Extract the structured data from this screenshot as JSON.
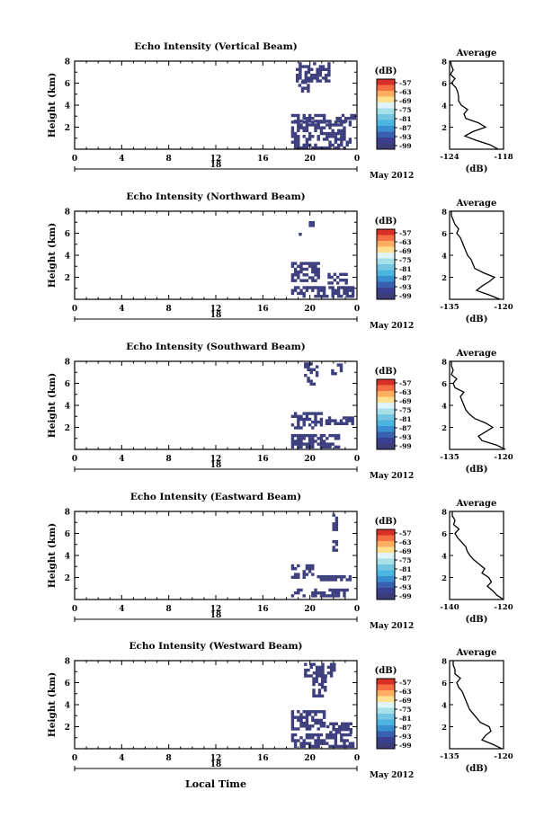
{
  "common": {
    "xlabel": "Local Time",
    "date_label": "May 2012",
    "day_label": "18",
    "ylabel": "Height (km)",
    "colorbar_unit": "(dB)",
    "avg_title": "Average",
    "avg_xlabel": "(dB)",
    "colorbar_ticks": [
      "-57",
      "-63",
      "-69",
      "-75",
      "-81",
      "-87",
      "-93",
      "-99"
    ],
    "colorbar_colors": [
      "#d73027",
      "#f46d43",
      "#fdae61",
      "#fee090",
      "#e0f3f8",
      "#a6e0e9",
      "#74c6e0",
      "#4db6e0",
      "#3a8fd0",
      "#3a60b0",
      "#3b3f90",
      "#3c3c78"
    ]
  },
  "chart_data": [
    {
      "type": "heatmap",
      "title": "Echo Intensity (Vertical Beam)",
      "xlim": [
        0,
        24
      ],
      "xticks": [
        "0",
        "4",
        "8",
        "12",
        "16",
        "20",
        "0"
      ],
      "ylim": [
        0,
        8
      ],
      "yticks": [
        "2",
        "4",
        "6",
        "8"
      ],
      "echo_cells": [
        {
          "t": [
            18.8,
            21.5
          ],
          "h": [
            6.2,
            7.9
          ]
        },
        {
          "t": [
            19.0,
            20.2
          ],
          "h": [
            5.4,
            6.2
          ]
        },
        {
          "t": [
            18.4,
            21.8
          ],
          "h": [
            2.6,
            3.2
          ]
        },
        {
          "t": [
            22.2,
            23.8
          ],
          "h": [
            2.6,
            3.2
          ]
        },
        {
          "t": [
            18.4,
            23.5
          ],
          "h": [
            0.2,
            2.6
          ]
        }
      ],
      "average": {
        "xlim": [
          -124,
          -118
        ],
        "xticks": [
          "-124",
          "-118"
        ],
        "height": [
          0.0,
          0.4,
          0.8,
          1.2,
          1.6,
          2.0,
          2.4,
          2.8,
          3.2,
          3.6,
          4.0,
          4.4,
          4.8,
          5.2,
          5.6,
          6.0,
          6.4,
          6.8,
          7.2,
          7.6,
          8.0
        ],
        "value": [
          -118.6,
          -119.5,
          -121.0,
          -122.3,
          -121.4,
          -120.0,
          -120.8,
          -122.2,
          -122.4,
          -122.0,
          -122.7,
          -123.0,
          -123.0,
          -123.1,
          -123.3,
          -123.8,
          -123.4,
          -123.9,
          -123.6,
          -123.8,
          -123.9
        ]
      }
    },
    {
      "type": "heatmap",
      "title": "Echo Intensity (Northward Beam)",
      "xlim": [
        0,
        24
      ],
      "xticks": [
        "0",
        "4",
        "8",
        "12",
        "16",
        "20",
        "0"
      ],
      "ylim": [
        0,
        8
      ],
      "yticks": [
        "2",
        "4",
        "6",
        "8"
      ],
      "echo_cells": [
        {
          "t": [
            19.9,
            20.3
          ],
          "h": [
            6.6,
            7.1
          ]
        },
        {
          "t": [
            18.8,
            19.2
          ],
          "h": [
            5.9,
            6.3
          ]
        },
        {
          "t": [
            18.4,
            20.8
          ],
          "h": [
            1.6,
            3.4
          ]
        },
        {
          "t": [
            21.5,
            23.2
          ],
          "h": [
            1.6,
            2.4
          ]
        },
        {
          "t": [
            18.4,
            23.6
          ],
          "h": [
            0.2,
            1.2
          ]
        }
      ],
      "average": {
        "xlim": [
          -135,
          -120
        ],
        "xticks": [
          "-135",
          "-120"
        ],
        "height": [
          0.0,
          0.4,
          0.8,
          1.2,
          1.6,
          2.0,
          2.4,
          2.8,
          3.2,
          3.6,
          4.0,
          4.4,
          4.8,
          5.2,
          5.6,
          6.0,
          6.4,
          6.8,
          7.2,
          7.6,
          8.0
        ],
        "value": [
          -121.0,
          -124.0,
          -127.5,
          -126.0,
          -124.0,
          -122.5,
          -125.5,
          -128.0,
          -128.5,
          -129.0,
          -130.0,
          -130.5,
          -131.0,
          -131.5,
          -132.0,
          -133.0,
          -132.5,
          -133.5,
          -134.0,
          -134.5,
          -134.5
        ]
      }
    },
    {
      "type": "heatmap",
      "title": "Echo Intensity (Southward Beam)",
      "xlim": [
        0,
        24
      ],
      "xticks": [
        "0",
        "4",
        "8",
        "12",
        "16",
        "20",
        "0"
      ],
      "ylim": [
        0,
        8
      ],
      "yticks": [
        "2",
        "4",
        "6",
        "8"
      ],
      "echo_cells": [
        {
          "t": [
            19.5,
            20.7
          ],
          "h": [
            6.0,
            7.9
          ]
        },
        {
          "t": [
            21.8,
            22.6
          ],
          "h": [
            7.0,
            7.8
          ]
        },
        {
          "t": [
            18.4,
            21.0
          ],
          "h": [
            2.0,
            3.4
          ]
        },
        {
          "t": [
            21.3,
            23.6
          ],
          "h": [
            2.4,
            3.0
          ]
        },
        {
          "t": [
            18.4,
            22.5
          ],
          "h": [
            0.2,
            1.4
          ]
        }
      ],
      "average": {
        "xlim": [
          -135,
          -120
        ],
        "xticks": [
          "-135",
          "-120"
        ],
        "height": [
          0.0,
          0.4,
          0.8,
          1.2,
          1.6,
          2.0,
          2.4,
          2.8,
          3.2,
          3.6,
          4.0,
          4.4,
          4.8,
          5.2,
          5.6,
          6.0,
          6.4,
          6.8,
          7.2,
          7.6,
          8.0
        ],
        "value": [
          -119.5,
          -122.0,
          -126.0,
          -127.0,
          -125.0,
          -123.0,
          -125.0,
          -128.0,
          -129.5,
          -130.5,
          -131.0,
          -131.5,
          -132.0,
          -131.0,
          -133.5,
          -134.0,
          -133.0,
          -134.5,
          -134.0,
          -134.5,
          -134.5
        ]
      }
    },
    {
      "type": "heatmap",
      "title": "Echo Intensity (Eastward Beam)",
      "xlim": [
        0,
        24
      ],
      "xticks": [
        "0",
        "4",
        "8",
        "12",
        "16",
        "20",
        "0"
      ],
      "ylim": [
        0,
        8
      ],
      "yticks": [
        "2",
        "4",
        "6",
        "8"
      ],
      "echo_cells": [
        {
          "t": [
            21.9,
            22.3
          ],
          "h": [
            6.0,
            7.8
          ]
        },
        {
          "t": [
            21.9,
            22.3
          ],
          "h": [
            4.6,
            5.4
          ]
        },
        {
          "t": [
            18.4,
            20.2
          ],
          "h": [
            2.0,
            3.2
          ]
        },
        {
          "t": [
            20.6,
            23.5
          ],
          "h": [
            1.8,
            2.2
          ]
        },
        {
          "t": [
            18.4,
            23.2
          ],
          "h": [
            0.4,
            1.0
          ]
        }
      ],
      "average": {
        "xlim": [
          -140,
          -120
        ],
        "xticks": [
          "-140",
          "-120"
        ],
        "height": [
          0.0,
          0.4,
          0.8,
          1.2,
          1.6,
          2.0,
          2.4,
          2.8,
          3.2,
          3.6,
          4.0,
          4.4,
          4.8,
          5.2,
          5.6,
          6.0,
          6.4,
          6.8,
          7.2,
          7.6,
          8.0
        ],
        "value": [
          -120.0,
          -122.5,
          -124.0,
          -126.0,
          -124.5,
          -125.5,
          -128.0,
          -127.0,
          -129.0,
          -131.0,
          -132.5,
          -133.5,
          -134.0,
          -135.5,
          -137.0,
          -138.0,
          -136.5,
          -138.5,
          -138.0,
          -139.0,
          -139.0
        ]
      }
    },
    {
      "type": "heatmap",
      "title": "Echo Intensity (Westward Beam)",
      "xlim": [
        0,
        24
      ],
      "xticks": [
        "0",
        "4",
        "8",
        "12",
        "16",
        "20",
        "0"
      ],
      "ylim": [
        0,
        8
      ],
      "yticks": [
        "2",
        "4",
        "6",
        "8"
      ],
      "echo_cells": [
        {
          "t": [
            19.5,
            22.0
          ],
          "h": [
            6.5,
            7.8
          ]
        },
        {
          "t": [
            20.2,
            21.4
          ],
          "h": [
            4.9,
            6.5
          ]
        },
        {
          "t": [
            18.4,
            21.2
          ],
          "h": [
            1.8,
            3.5
          ]
        },
        {
          "t": [
            21.4,
            23.5
          ],
          "h": [
            1.6,
            2.4
          ]
        },
        {
          "t": [
            18.4,
            23.6
          ],
          "h": [
            0.2,
            1.4
          ]
        }
      ],
      "average": {
        "xlim": [
          -135,
          -120
        ],
        "xticks": [
          "-135",
          "-120"
        ],
        "height": [
          0.0,
          0.4,
          0.8,
          1.2,
          1.6,
          2.0,
          2.4,
          2.8,
          3.2,
          3.6,
          4.0,
          4.4,
          4.8,
          5.2,
          5.6,
          6.0,
          6.4,
          6.8,
          7.2,
          7.6,
          8.0
        ],
        "value": [
          -120.5,
          -123.0,
          -126.0,
          -125.0,
          -123.5,
          -124.0,
          -126.5,
          -127.5,
          -128.5,
          -129.5,
          -130.0,
          -130.5,
          -131.0,
          -131.5,
          -132.5,
          -133.0,
          -132.0,
          -133.5,
          -133.5,
          -134.0,
          -134.0
        ]
      }
    }
  ]
}
